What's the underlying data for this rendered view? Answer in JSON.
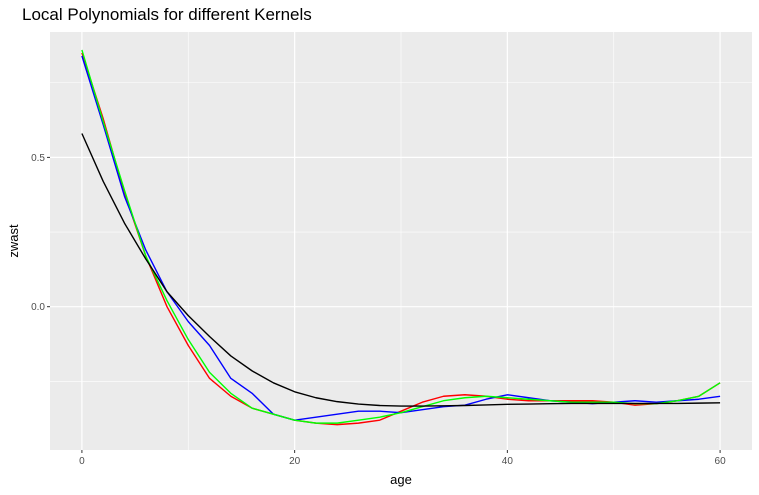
{
  "chart_data": {
    "type": "line",
    "title": "Local Polynomials for different Kernels",
    "xlabel": "age",
    "ylabel": "zwast",
    "xlim": [
      -3,
      63
    ],
    "ylim": [
      -0.48,
      0.92
    ],
    "x_ticks": [
      0,
      20,
      40,
      60
    ],
    "y_ticks": [
      0.0,
      0.5
    ],
    "x_tick_labels": [
      "0",
      "20",
      "40",
      "60"
    ],
    "y_tick_labels": [
      "0.0",
      "0.5"
    ],
    "grid": true,
    "background": "#ebebeb",
    "series": [
      {
        "color": "#ff0000",
        "x": [
          0,
          2,
          4,
          6,
          8,
          10,
          12,
          14,
          16,
          18,
          20,
          22,
          24,
          26,
          28,
          30,
          32,
          34,
          36,
          38,
          40,
          42,
          44,
          46,
          48,
          50,
          52,
          54,
          56,
          58,
          60
        ],
        "y": [
          0.85,
          0.63,
          0.38,
          0.17,
          0.0,
          -0.13,
          -0.24,
          -0.3,
          -0.34,
          -0.36,
          -0.38,
          -0.39,
          -0.395,
          -0.39,
          -0.38,
          -0.35,
          -0.32,
          -0.3,
          -0.295,
          -0.3,
          -0.31,
          -0.315,
          -0.315,
          -0.315,
          -0.315,
          -0.32,
          -0.33,
          -0.325,
          -0.315,
          -0.3,
          -0.255
        ]
      },
      {
        "color": "#0000ff",
        "x": [
          0,
          2,
          4,
          6,
          8,
          10,
          12,
          14,
          16,
          18,
          20,
          22,
          24,
          26,
          28,
          30,
          32,
          34,
          36,
          38,
          40,
          42,
          44,
          46,
          48,
          50,
          52,
          54,
          56,
          58,
          60
        ],
        "y": [
          0.84,
          0.61,
          0.37,
          0.19,
          0.05,
          -0.05,
          -0.13,
          -0.24,
          -0.29,
          -0.36,
          -0.38,
          -0.37,
          -0.36,
          -0.35,
          -0.35,
          -0.355,
          -0.345,
          -0.335,
          -0.33,
          -0.31,
          -0.295,
          -0.305,
          -0.315,
          -0.32,
          -0.325,
          -0.32,
          -0.315,
          -0.32,
          -0.315,
          -0.31,
          -0.3
        ]
      },
      {
        "color": "#00ff00",
        "x": [
          0,
          2,
          4,
          6,
          8,
          10,
          12,
          14,
          16,
          18,
          20,
          22,
          24,
          26,
          28,
          30,
          32,
          34,
          36,
          38,
          40,
          42,
          44,
          46,
          48,
          50,
          52,
          54,
          56,
          58,
          60
        ],
        "y": [
          0.86,
          0.62,
          0.39,
          0.17,
          0.02,
          -0.11,
          -0.22,
          -0.29,
          -0.34,
          -0.36,
          -0.38,
          -0.39,
          -0.39,
          -0.38,
          -0.37,
          -0.355,
          -0.335,
          -0.315,
          -0.305,
          -0.3,
          -0.305,
          -0.31,
          -0.315,
          -0.32,
          -0.32,
          -0.32,
          -0.325,
          -0.325,
          -0.315,
          -0.3,
          -0.255
        ]
      },
      {
        "color": "#000000",
        "x": [
          0,
          2,
          4,
          6,
          8,
          10,
          12,
          14,
          16,
          18,
          20,
          22,
          24,
          26,
          28,
          30,
          32,
          34,
          36,
          38,
          40,
          42,
          44,
          46,
          48,
          50,
          52,
          54,
          56,
          58,
          60
        ],
        "y": [
          0.58,
          0.42,
          0.28,
          0.16,
          0.05,
          -0.03,
          -0.1,
          -0.165,
          -0.215,
          -0.255,
          -0.285,
          -0.305,
          -0.318,
          -0.326,
          -0.331,
          -0.333,
          -0.333,
          -0.332,
          -0.331,
          -0.329,
          -0.327,
          -0.326,
          -0.325,
          -0.324,
          -0.324,
          -0.324,
          -0.324,
          -0.324,
          -0.324,
          -0.323,
          -0.322
        ]
      }
    ]
  }
}
